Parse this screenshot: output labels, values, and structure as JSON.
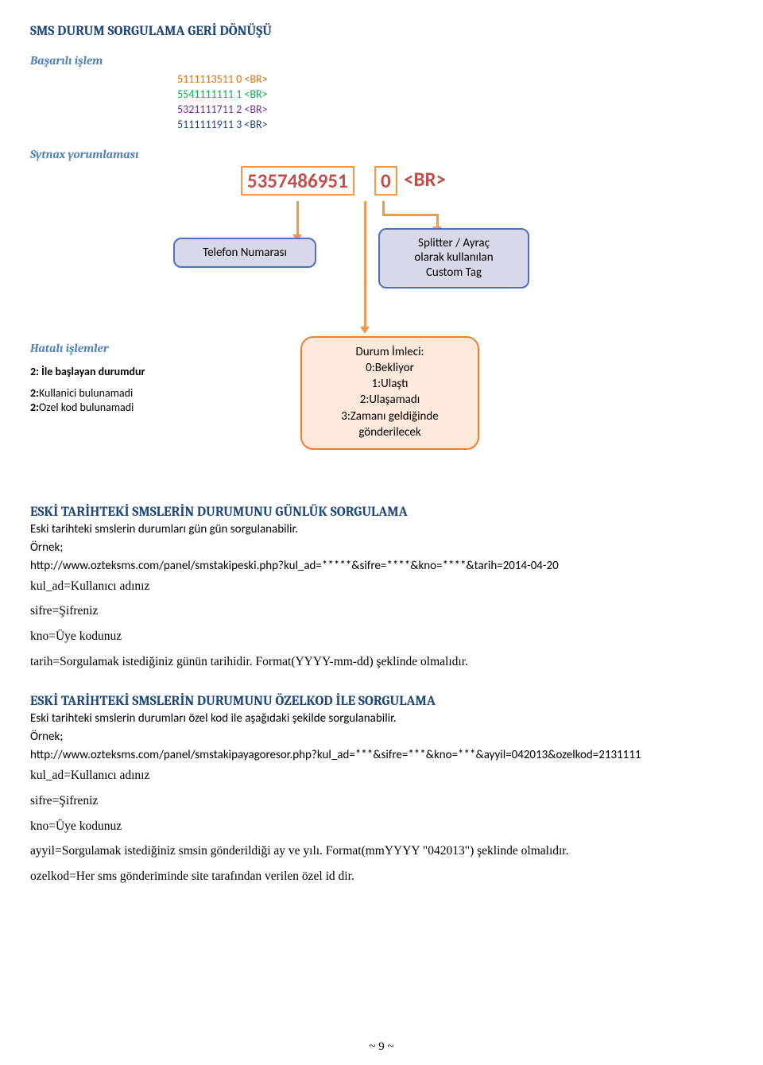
{
  "title": "SMS DURUM SORGULAMA GERİ DÖNÜŞÜ",
  "sub_success": "Başarılı işlem",
  "code": {
    "l1": "5111113511 0 <BR>",
    "l2": "5541111111 1 <BR>",
    "l3": "5321111711 2 <BR>",
    "l4": "5111111911 3 <BR>"
  },
  "sub_syntax": "Sytnax yorumlaması",
  "syntax": {
    "phone": "5357486951",
    "zero": "0",
    "br": "<BR>"
  },
  "box_telefon": "Telefon Numarası",
  "box_splitter": "Splitter / Ayraç\nolarak kullanılan\nCustom Tag",
  "errors": {
    "title": "Hatalı işlemler",
    "sub": "2: İle başlayan durumdur",
    "l1_pre": "2:",
    "l1": "Kullanici bulunamadi",
    "l2_pre": "2:",
    "l2": "Ozel kod bulunamadi"
  },
  "durum": {
    "title": "Durum İmleci:",
    "l0": "0:Bekliyor",
    "l1": "1:Ulaştı",
    "l2": "2:Ulaşamadı",
    "l3a": "3:Zamanı geldiğinde",
    "l3b": "gönderilecek"
  },
  "sec1": {
    "title": "ESKİ TARİHTEKİ SMSLERİN DURUMUNU GÜNLÜK SORGULAMA",
    "p1": "Eski tarihteki smslerin durumları gün gün sorgulanabilir.",
    "p2": "Örnek;",
    "p3": "http://www.ozteksms.com/panel/smstakipeski.php?kul_ad=*****&sifre=****&kno=****&tarih=2014-04-20",
    "p4": "kul_ad=Kullanıcı adınız",
    "p5": "sifre=Şifreniz",
    "p6": "kno=Üye kodunuz",
    "p7": "tarih=Sorgulamak istediğiniz günün tarihidir. Format(YYYY-mm-dd) şeklinde olmalıdır."
  },
  "sec2": {
    "title": "ESKİ TARİHTEKİ SMSLERİN DURUMUNU ÖZELKOD İLE SORGULAMA",
    "p1": "Eski tarihteki smslerin durumları özel kod ile aşağıdaki şekilde sorgulanabilir.",
    "p2": "Örnek;",
    "p3": "http://www.ozteksms.com/panel/smstakipayagoresor.php?kul_ad=***&sifre=***&kno=***&ayyil=042013&ozelkod=2131111",
    "p4": "kul_ad=Kullanıcı adınız",
    "p5": "sifre=Şifreniz",
    "p6": "kno=Üye kodunuz",
    "p7": "ayyil=Sorgulamak istediğiniz smsin gönderildiği ay ve yılı. Format(mmYYYY \"042013\") şeklinde olmalıdır.",
    "p8": "ozelkod=Her sms gönderiminde site tarafından verilen özel id dir."
  },
  "page": "~ 9 ~",
  "colors": {
    "h_blue": "#1f497d",
    "sub_blue": "#4f81bd",
    "orange": "#f79646",
    "green": "#00b050",
    "purple": "#7030a0",
    "redbox": "#c0504d"
  }
}
